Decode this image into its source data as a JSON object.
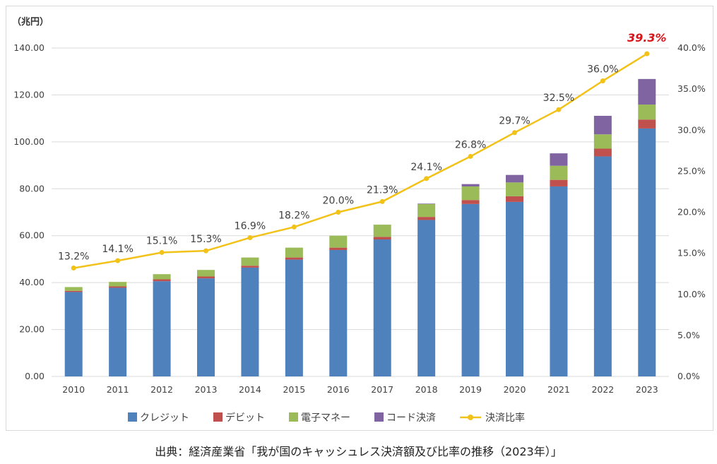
{
  "chart_data": {
    "type": "bar",
    "stacked": true,
    "unit_label": "（兆円）",
    "categories": [
      "2010",
      "2011",
      "2012",
      "2013",
      "2014",
      "2015",
      "2016",
      "2017",
      "2018",
      "2019",
      "2020",
      "2021",
      "2022",
      "2023"
    ],
    "series": [
      {
        "name": "クレジット",
        "color": "#4f81bd",
        "values": [
          36.0,
          37.8,
          40.6,
          41.8,
          46.4,
          49.8,
          53.9,
          58.4,
          66.7,
          73.5,
          74.4,
          81.0,
          93.8,
          105.7
        ]
      },
      {
        "name": "デビット",
        "color": "#c0504d",
        "values": [
          0.5,
          0.6,
          0.8,
          0.8,
          0.8,
          0.9,
          1.0,
          1.1,
          1.3,
          1.7,
          2.4,
          2.8,
          3.3,
          3.8
        ]
      },
      {
        "name": "電子マネー",
        "color": "#9bbb59",
        "values": [
          1.6,
          1.9,
          2.2,
          2.8,
          3.5,
          4.2,
          5.1,
          5.2,
          5.5,
          5.8,
          5.9,
          6.0,
          6.1,
          6.4
        ]
      },
      {
        "name": "コード決済",
        "color": "#8064a2",
        "values": [
          0,
          0,
          0,
          0,
          0,
          0,
          0,
          0,
          0.2,
          1.0,
          3.2,
          5.3,
          7.9,
          10.9
        ]
      }
    ],
    "line": {
      "name": "決済比率",
      "color": "#f2c218",
      "axis": "right",
      "values": [
        13.2,
        14.1,
        15.1,
        15.3,
        16.9,
        18.2,
        20.0,
        21.3,
        24.1,
        26.8,
        29.7,
        32.5,
        36.0,
        39.3
      ],
      "labels": [
        "13.2%",
        "14.1%",
        "15.1%",
        "15.3%",
        "16.9%",
        "18.2%",
        "20.0%",
        "21.3%",
        "24.1%",
        "26.8%",
        "29.7%",
        "32.5%",
        "36.0%",
        "39.3%"
      ],
      "highlight_index": 13,
      "highlight_color": "#d9151b"
    },
    "y_left": {
      "min": 0,
      "max": 140,
      "step": 20,
      "ticks": [
        "0.00",
        "20.00",
        "40.00",
        "60.00",
        "80.00",
        "100.00",
        "120.00",
        "140.00"
      ]
    },
    "y_right": {
      "min": 0,
      "max": 40,
      "step": 5,
      "ticks": [
        "0.0%",
        "5.0%",
        "10.0%",
        "15.0%",
        "20.0%",
        "25.0%",
        "30.0%",
        "35.0%",
        "40.0%"
      ]
    },
    "grid": true,
    "legend_position": "bottom"
  },
  "caption": "出典：経済産業省「我が国のキャッシュレス決済額及び比率の推移（2023年）」"
}
